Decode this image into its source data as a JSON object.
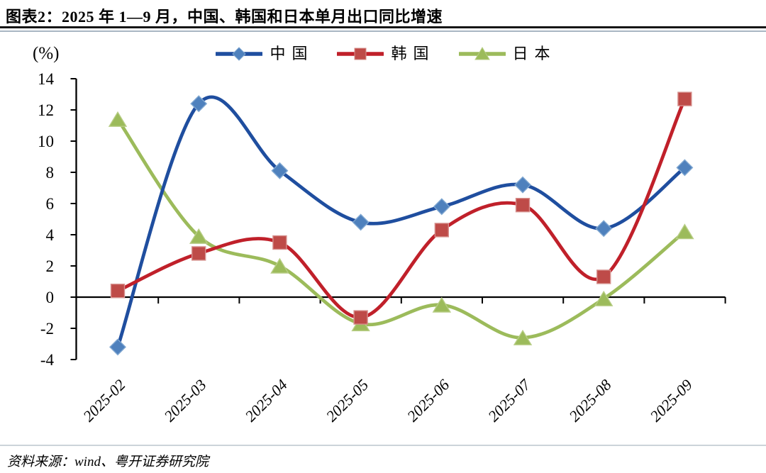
{
  "header": {
    "title": "图表2：2025 年 1—9 月，中国、韩国和日本单月出口同比增速"
  },
  "footer": {
    "source": "资料来源：wind、粤开证券研究院"
  },
  "chart_data": {
    "type": "line",
    "title": "2025 年 1—9 月，中国、韩国和日本单月出口同比增速",
    "unit_label": "(%)",
    "xlabel": "",
    "ylabel": "(%)",
    "categories": [
      "2025-02",
      "2025-03",
      "2025-04",
      "2025-05",
      "2025-06",
      "2025-07",
      "2025-08",
      "2025-09"
    ],
    "series": [
      {
        "name": "中国",
        "marker": "diamond",
        "line_color": "#1F4E9F",
        "marker_fill": "#4F81BD",
        "marker_stroke": "#7FA7D1",
        "values": [
          -3.2,
          12.4,
          8.1,
          4.8,
          5.8,
          7.2,
          4.4,
          8.3
        ]
      },
      {
        "name": "韩国",
        "marker": "square",
        "line_color": "#C0202A",
        "marker_fill": "#BE4B48",
        "marker_stroke": "#D6908D",
        "values": [
          0.4,
          2.8,
          3.5,
          -1.3,
          4.3,
          5.9,
          1.3,
          12.7
        ]
      },
      {
        "name": "日本",
        "marker": "triangle",
        "line_color": "#9CBB5B",
        "marker_fill": "#9CBB5B",
        "marker_stroke": "#B7CD85",
        "values": [
          11.4,
          3.9,
          2.0,
          -1.7,
          -0.5,
          -2.6,
          -0.1,
          4.2
        ]
      }
    ],
    "ylim": [
      -4,
      14
    ],
    "ytick_step": 2,
    "grid": false,
    "smoothed_lines": true,
    "legend_position": "top-center",
    "axis_color": "#000000",
    "draw_order": [
      2,
      0,
      1
    ]
  }
}
